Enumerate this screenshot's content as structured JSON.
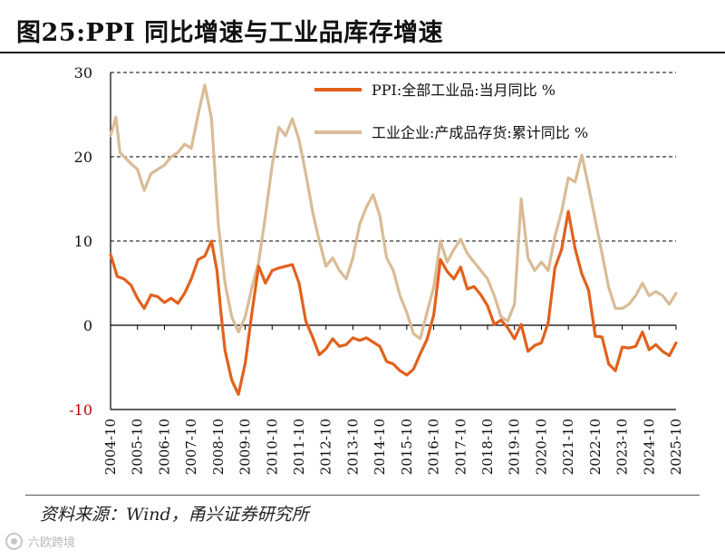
{
  "header": {
    "title": "图25:PPI 同比增速与工业品库存增速"
  },
  "source": {
    "text": "资料来源：Wind，甬兴证券研究所"
  },
  "watermark": {
    "text": "六欧跨境"
  },
  "colors": {
    "ppi": "#E2611C",
    "inventory": "#D9BC96",
    "axis": "#000000",
    "grid": "#000000"
  },
  "chart_data": {
    "type": "line",
    "title": "图25:PPI 同比增速与工业品库存增速",
    "xlabel": "",
    "ylabel": "",
    "ylim": [
      -10,
      30
    ],
    "yticks": [
      -10,
      0,
      10,
      20,
      30
    ],
    "yticks_red": [
      -10
    ],
    "grid": "dashed horizontal at 10, 20, 30",
    "legend_position": "top-right",
    "x_start": 2004.75,
    "x_end": 2025.75,
    "x_tick_labels": [
      "2004-10",
      "2005-10",
      "2006-10",
      "2007-10",
      "2008-10",
      "2009-10",
      "2010-10",
      "2011-10",
      "2012-10",
      "2013-10",
      "2014-10",
      "2015-10",
      "2016-10",
      "2017-10",
      "2018-10",
      "2019-10",
      "2020-10",
      "2021-10",
      "2022-10",
      "2023-10",
      "2024-10",
      "2025-10"
    ],
    "series": [
      {
        "name": "PPI:全部工业品:当月同比 %",
        "color": "#E2611C",
        "points": [
          [
            2004.75,
            8.4
          ],
          [
            2005.0,
            5.8
          ],
          [
            2005.25,
            5.5
          ],
          [
            2005.5,
            4.8
          ],
          [
            2005.75,
            3.2
          ],
          [
            2006.0,
            2.0
          ],
          [
            2006.25,
            3.6
          ],
          [
            2006.5,
            3.4
          ],
          [
            2006.75,
            2.7
          ],
          [
            2007.0,
            3.2
          ],
          [
            2007.25,
            2.6
          ],
          [
            2007.5,
            3.8
          ],
          [
            2007.75,
            5.5
          ],
          [
            2008.0,
            7.8
          ],
          [
            2008.25,
            8.2
          ],
          [
            2008.5,
            10.0
          ],
          [
            2008.7,
            6.5
          ],
          [
            2008.85,
            1.5
          ],
          [
            2009.0,
            -3.0
          ],
          [
            2009.25,
            -6.5
          ],
          [
            2009.5,
            -8.2
          ],
          [
            2009.75,
            -4.5
          ],
          [
            2010.0,
            1.5
          ],
          [
            2010.25,
            7.0
          ],
          [
            2010.5,
            5.0
          ],
          [
            2010.75,
            6.5
          ],
          [
            2011.0,
            6.8
          ],
          [
            2011.25,
            7.0
          ],
          [
            2011.5,
            7.2
          ],
          [
            2011.75,
            5.0
          ],
          [
            2012.0,
            0.5
          ],
          [
            2012.25,
            -1.4
          ],
          [
            2012.5,
            -3.5
          ],
          [
            2012.75,
            -2.8
          ],
          [
            2013.0,
            -1.6
          ],
          [
            2013.25,
            -2.5
          ],
          [
            2013.5,
            -2.3
          ],
          [
            2013.75,
            -1.5
          ],
          [
            2014.0,
            -1.8
          ],
          [
            2014.25,
            -1.5
          ],
          [
            2014.5,
            -2.0
          ],
          [
            2014.75,
            -2.5
          ],
          [
            2015.0,
            -4.3
          ],
          [
            2015.25,
            -4.6
          ],
          [
            2015.5,
            -5.4
          ],
          [
            2015.75,
            -5.9
          ],
          [
            2016.0,
            -5.2
          ],
          [
            2016.25,
            -3.4
          ],
          [
            2016.5,
            -1.7
          ],
          [
            2016.75,
            1.2
          ],
          [
            2017.0,
            7.8
          ],
          [
            2017.25,
            6.4
          ],
          [
            2017.5,
            5.5
          ],
          [
            2017.75,
            6.9
          ],
          [
            2018.0,
            4.3
          ],
          [
            2018.25,
            4.6
          ],
          [
            2018.5,
            3.6
          ],
          [
            2018.75,
            2.3
          ],
          [
            2019.0,
            0.1
          ],
          [
            2019.25,
            0.6
          ],
          [
            2019.5,
            -0.3
          ],
          [
            2019.75,
            -1.6
          ],
          [
            2020.0,
            0.1
          ],
          [
            2020.25,
            -3.1
          ],
          [
            2020.5,
            -2.4
          ],
          [
            2020.75,
            -2.1
          ],
          [
            2021.0,
            0.3
          ],
          [
            2021.25,
            6.8
          ],
          [
            2021.5,
            9.0
          ],
          [
            2021.75,
            13.5
          ],
          [
            2022.0,
            9.1
          ],
          [
            2022.25,
            6.1
          ],
          [
            2022.5,
            4.2
          ],
          [
            2022.75,
            -1.3
          ],
          [
            2023.0,
            -1.4
          ],
          [
            2023.25,
            -4.6
          ],
          [
            2023.5,
            -5.4
          ],
          [
            2023.75,
            -2.6
          ],
          [
            2024.0,
            -2.7
          ],
          [
            2024.25,
            -2.5
          ],
          [
            2024.5,
            -0.8
          ],
          [
            2024.75,
            -2.9
          ],
          [
            2025.0,
            -2.3
          ],
          [
            2025.25,
            -3.1
          ],
          [
            2025.5,
            -3.6
          ],
          [
            2025.75,
            -2.1
          ]
        ]
      },
      {
        "name": "工业企业:产成品存货:累计同比 %",
        "color": "#D9BC96",
        "points": [
          [
            2004.75,
            22.5
          ],
          [
            2004.95,
            24.7
          ],
          [
            2005.1,
            20.5
          ],
          [
            2005.25,
            20.0
          ],
          [
            2005.5,
            19.2
          ],
          [
            2005.75,
            18.5
          ],
          [
            2006.0,
            16.0
          ],
          [
            2006.25,
            18.0
          ],
          [
            2006.5,
            18.5
          ],
          [
            2006.75,
            19.0
          ],
          [
            2007.0,
            20.0
          ],
          [
            2007.25,
            20.5
          ],
          [
            2007.5,
            21.5
          ],
          [
            2007.75,
            21.0
          ],
          [
            2008.0,
            25.0
          ],
          [
            2008.25,
            28.5
          ],
          [
            2008.5,
            24.5
          ],
          [
            2008.75,
            12.0
          ],
          [
            2009.0,
            5.0
          ],
          [
            2009.25,
            1.0
          ],
          [
            2009.5,
            -0.8
          ],
          [
            2009.75,
            1.0
          ],
          [
            2010.0,
            4.5
          ],
          [
            2010.25,
            7.5
          ],
          [
            2010.5,
            13.0
          ],
          [
            2010.75,
            19.0
          ],
          [
            2011.0,
            23.5
          ],
          [
            2011.25,
            22.5
          ],
          [
            2011.5,
            24.5
          ],
          [
            2011.75,
            22.0
          ],
          [
            2012.0,
            18.0
          ],
          [
            2012.25,
            13.5
          ],
          [
            2012.5,
            10.0
          ],
          [
            2012.75,
            7.0
          ],
          [
            2013.0,
            8.0
          ],
          [
            2013.25,
            6.5
          ],
          [
            2013.5,
            5.5
          ],
          [
            2013.75,
            8.0
          ],
          [
            2014.0,
            12.0
          ],
          [
            2014.25,
            14.0
          ],
          [
            2014.5,
            15.5
          ],
          [
            2014.75,
            13.0
          ],
          [
            2015.0,
            8.0
          ],
          [
            2015.25,
            6.5
          ],
          [
            2015.5,
            3.5
          ],
          [
            2015.75,
            1.5
          ],
          [
            2016.0,
            -1.0
          ],
          [
            2016.25,
            -1.6
          ],
          [
            2016.5,
            1.5
          ],
          [
            2016.75,
            4.5
          ],
          [
            2017.0,
            10.0
          ],
          [
            2017.25,
            7.5
          ],
          [
            2017.5,
            9.0
          ],
          [
            2017.75,
            10.2
          ],
          [
            2018.0,
            8.5
          ],
          [
            2018.25,
            7.5
          ],
          [
            2018.5,
            6.5
          ],
          [
            2018.75,
            5.5
          ],
          [
            2019.0,
            3.5
          ],
          [
            2019.25,
            1.0
          ],
          [
            2019.5,
            0.5
          ],
          [
            2019.75,
            2.5
          ],
          [
            2020.0,
            15.0
          ],
          [
            2020.25,
            8.0
          ],
          [
            2020.5,
            6.5
          ],
          [
            2020.75,
            7.5
          ],
          [
            2021.0,
            6.5
          ],
          [
            2021.25,
            10.5
          ],
          [
            2021.5,
            13.5
          ],
          [
            2021.75,
            17.5
          ],
          [
            2022.0,
            17.0
          ],
          [
            2022.25,
            20.2
          ],
          [
            2022.5,
            16.5
          ],
          [
            2022.75,
            12.5
          ],
          [
            2023.0,
            8.5
          ],
          [
            2023.25,
            4.5
          ],
          [
            2023.5,
            2.0
          ],
          [
            2023.75,
            2.0
          ],
          [
            2024.0,
            2.5
          ],
          [
            2024.25,
            3.5
          ],
          [
            2024.5,
            5.0
          ],
          [
            2024.75,
            3.5
          ],
          [
            2025.0,
            4.0
          ],
          [
            2025.25,
            3.5
          ],
          [
            2025.5,
            2.5
          ],
          [
            2025.75,
            3.8
          ]
        ]
      }
    ]
  }
}
